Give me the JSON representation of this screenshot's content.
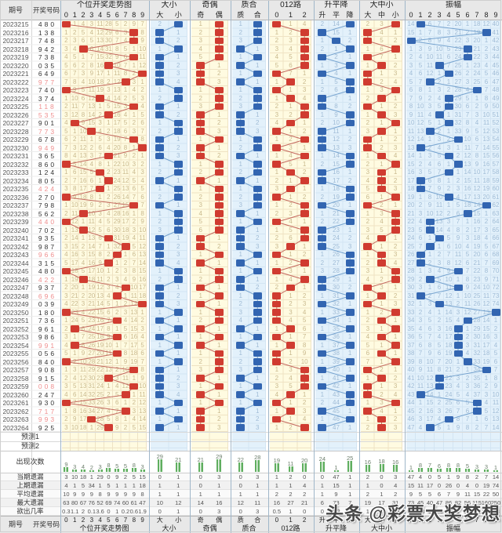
{
  "header": {
    "issue_col": "期号",
    "number_col": "开奖号码",
    "panels": [
      {
        "title": "个位开奖走势图",
        "cols": [
          "0",
          "1",
          "2",
          "3",
          "4",
          "5",
          "6",
          "7",
          "8",
          "9"
        ]
      },
      {
        "title": "大小",
        "cols": [
          "大",
          "小"
        ]
      },
      {
        "title": "奇偶",
        "cols": [
          "奇",
          "偶"
        ]
      },
      {
        "title": "质合",
        "cols": [
          "质",
          "合"
        ]
      },
      {
        "title": "012路",
        "cols": [
          "0",
          "1",
          "2"
        ]
      },
      {
        "title": "升平降",
        "cols": [
          "升",
          "平",
          "降"
        ]
      },
      {
        "title": "大中小",
        "cols": [
          "大",
          "中",
          "小"
        ]
      },
      {
        "title": "振幅",
        "cols": [
          "0",
          "1",
          "2",
          "3",
          "4",
          "5",
          "6",
          "7",
          "8",
          "9"
        ]
      }
    ]
  },
  "chart_data": {
    "type": "table",
    "title": "个位开奖走势图",
    "draws": [
      [
        "2023215",
        "480"
      ],
      [
        "2023216",
        "138"
      ],
      [
        "2023217",
        "748"
      ],
      [
        "2023218",
        "942"
      ],
      [
        "2023219",
        "738"
      ],
      [
        "2023220",
        "035"
      ],
      [
        "2023221",
        "649"
      ],
      [
        "2023222",
        "977"
      ],
      [
        "2023223",
        "740"
      ],
      [
        "2023224",
        "374"
      ],
      [
        "2023225",
        "118"
      ],
      [
        "2023226",
        "535"
      ],
      [
        "2023227",
        "901"
      ],
      [
        "2023228",
        "773"
      ],
      [
        "2023229",
        "678"
      ],
      [
        "2023230",
        "949"
      ],
      [
        "2023231",
        "365"
      ],
      [
        "2023232",
        "860"
      ],
      [
        "2023233",
        "124"
      ],
      [
        "2023234",
        "805"
      ],
      [
        "2023235",
        "424"
      ],
      [
        "2023236",
        "270"
      ],
      [
        "2023237",
        "798"
      ],
      [
        "2023238",
        "562"
      ],
      [
        "2023239",
        "440"
      ],
      [
        "2023240",
        "702"
      ],
      [
        "2023241",
        "935"
      ],
      [
        "2023242",
        "987"
      ],
      [
        "2023243",
        "966"
      ],
      [
        "2023244",
        "315"
      ],
      [
        "2023245",
        "480"
      ],
      [
        "2023246",
        "422"
      ],
      [
        "2023247",
        "937"
      ],
      [
        "2023248",
        "696"
      ],
      [
        "2023249",
        "039"
      ],
      [
        "2023250",
        "180"
      ],
      [
        "2023251",
        "736"
      ],
      [
        "2023252",
        "961"
      ],
      [
        "2023253",
        "986"
      ],
      [
        "2023254",
        "991"
      ],
      [
        "2023255",
        "056"
      ],
      [
        "2023256",
        "840"
      ],
      [
        "2023257",
        "908"
      ],
      [
        "2023258",
        "915"
      ],
      [
        "2023259",
        "008"
      ],
      [
        "2023260",
        "247"
      ],
      [
        "2023261",
        "930"
      ],
      [
        "2023262",
        "717"
      ],
      [
        "2023263",
        "993"
      ],
      [
        "2023264",
        "925"
      ]
    ],
    "prev_digit_before_window": 1,
    "initial_display": {
      "units": [
        null,
        1,
        4,
        3,
        11,
        28,
        5,
        2,
        9,
        7
      ],
      "dx": [
        2,
        null
      ],
      "jo": [
        1,
        null
      ],
      "zh": [
        1,
        null
      ],
      "lu": [
        null,
        1,
        4
      ],
      "spj": [
        2,
        14,
        null
      ],
      "dzx": [
        2,
        3,
        null
      ],
      "amp": [
        14,
        null,
        6,
        7,
        2,
        20,
        1,
        18,
        12,
        40
      ]
    },
    "stats": {
      "avg": {
        "units": [
          10,
          9,
          9,
          9,
          8,
          9,
          9,
          9,
          9,
          8
        ],
        "dx": [
          1,
          1
        ],
        "jo": [
          1,
          1
        ],
        "zh": [
          1,
          1
        ],
        "lu": [
          2,
          2,
          2
        ],
        "spj": [
          1,
          9,
          1
        ],
        "dzx": [
          2,
          1,
          2
        ],
        "amp": [
          9,
          5,
          5,
          6,
          7,
          9,
          11,
          15,
          22,
          50
        ]
      },
      "max": {
        "units": [
          63,
          80,
          67,
          76,
          52,
          69,
          74,
          60,
          61,
          47
        ],
        "dx": [
          10,
          12
        ],
        "jo": [
          14,
          16
        ],
        "zh": [
          12,
          11
        ],
        "lu": [
          16,
          27,
          21
        ],
        "spj": [
          6,
          73,
          7
        ],
        "dzx": [
          19,
          17,
          31
        ],
        "amp": [
          73,
          45,
          40,
          47,
          86,
          82,
          56,
          115,
          160,
          250
        ]
      }
    }
  },
  "predictions": [
    "预测1",
    "预测2"
  ],
  "stat_labels": {
    "appear": "出现次数",
    "cur": "当期遗漏",
    "prev": "上期遗漏",
    "avg": "平均遗漏",
    "max": "最大遗漏",
    "prob": "欲出几率"
  },
  "watermark": "头条 @彩票大奖梦想",
  "colors": {
    "header_bg": "#e8e8e8",
    "yellow_panel": "#fffbe1",
    "yellow_grid": "#efe3c4",
    "yellow_num": "#c9b98d",
    "blue_panel": "#e3f1fb",
    "blue_grid": "#d3e5f3",
    "blue_num": "#a0bcd6",
    "red_box": "#d03b30",
    "blue_box": "#3265b1",
    "red_line": "#c4695f",
    "blue_line": "#76a3cf",
    "separator": "#9fb6c9",
    "repeat_number": "#ef8f8f",
    "bar_green": "#5fae5f"
  }
}
